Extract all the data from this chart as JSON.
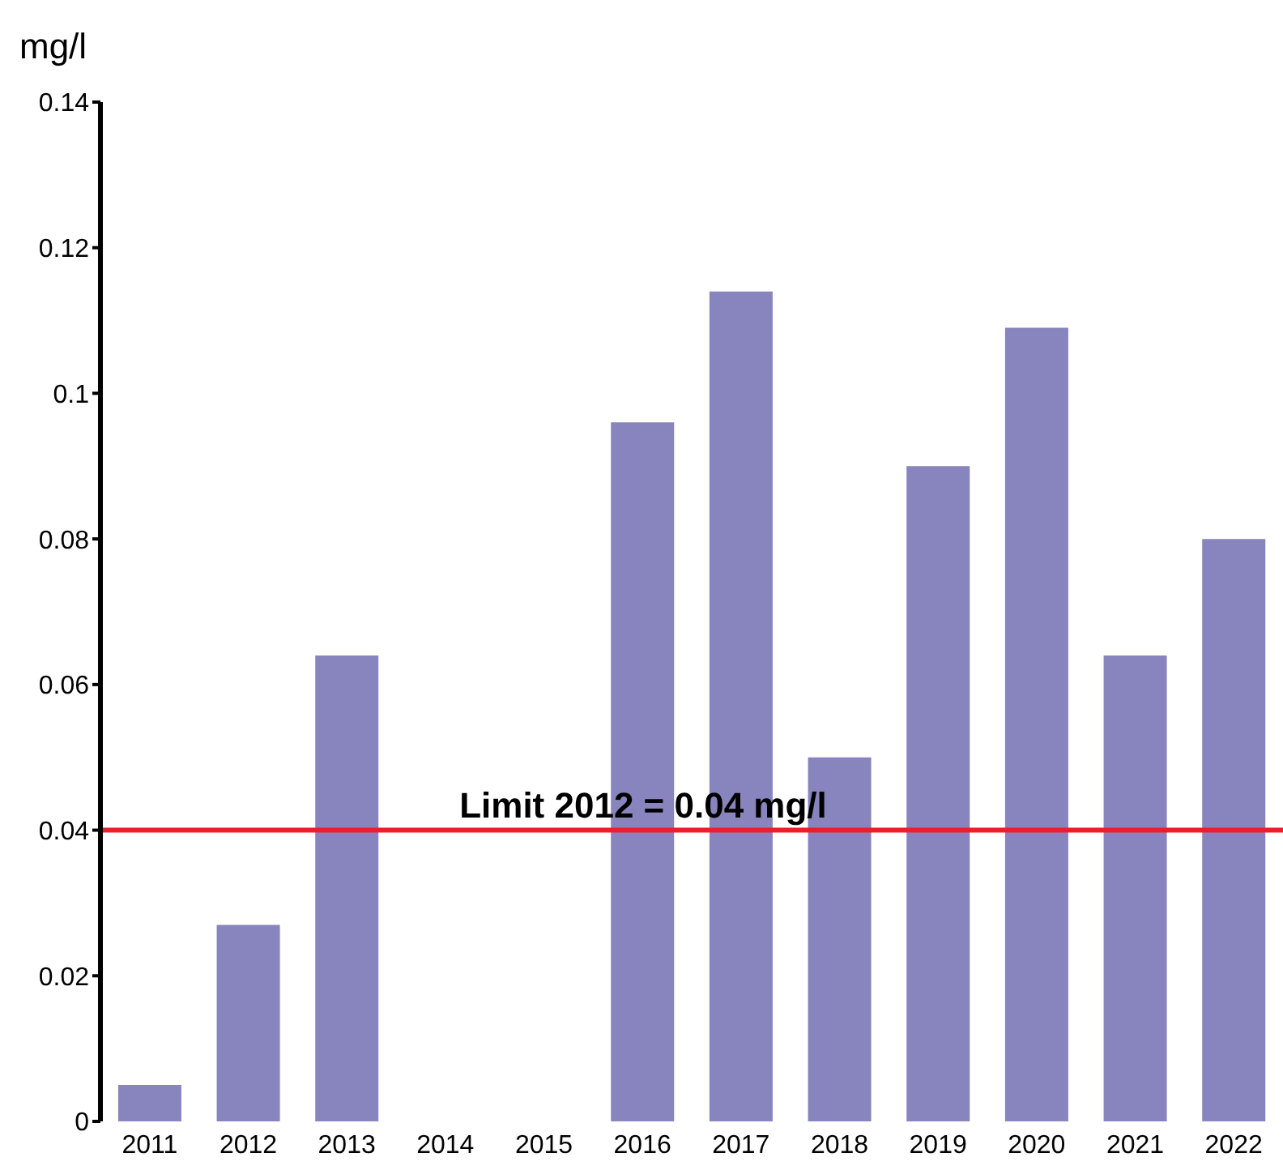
{
  "chart_data": {
    "type": "bar",
    "ylabel": "mg/l",
    "categories": [
      "2011",
      "2012",
      "2013",
      "2014",
      "2015",
      "2016",
      "2017",
      "2018",
      "2019",
      "2020",
      "2021",
      "2022"
    ],
    "values": [
      0.005,
      0.027,
      0.064,
      null,
      null,
      0.096,
      0.114,
      0.05,
      0.09,
      0.109,
      0.064,
      0.08
    ],
    "color": "#8884bd",
    "ylim": [
      0,
      0.14
    ],
    "yticks": [
      0,
      0.02,
      0.04,
      0.06,
      0.08,
      0.1,
      0.12,
      0.14
    ],
    "grid": false,
    "legend": false,
    "ref_lines": [
      {
        "axis": "y",
        "value": 0.04,
        "label": "Limit 2012 = 0.04 mg/l",
        "color": "#e8202a"
      }
    ]
  }
}
